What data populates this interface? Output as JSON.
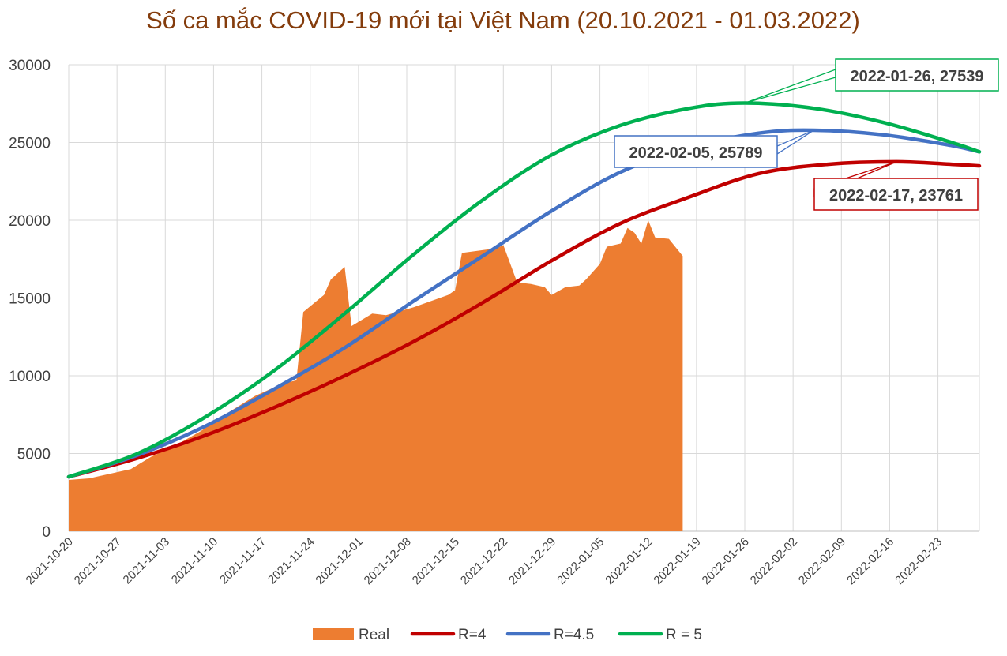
{
  "chart_data": {
    "type": "line",
    "title": "Số ca mắc COVID-19 mới tại Việt Nam (20.10.2021 - 01.03.2022)",
    "xlabel": "",
    "ylabel": "",
    "xlim": [
      "2021-10-20",
      "2022-03-01"
    ],
    "ylim": [
      0,
      30000
    ],
    "yticks": [
      0,
      5000,
      10000,
      15000,
      20000,
      25000,
      30000
    ],
    "xticks": [
      "2021-10-20",
      "2021-10-27",
      "2021-11-03",
      "2021-11-10",
      "2021-11-17",
      "2021-11-24",
      "2021-12-01",
      "2021-12-08",
      "2021-12-15",
      "2021-12-22",
      "2021-12-29",
      "2022-01-05",
      "2022-01-12",
      "2022-01-19",
      "2022-01-26",
      "2022-02-02",
      "2022-02-09",
      "2022-02-16",
      "2022-02-23"
    ],
    "grid": true,
    "legend_position": "bottom",
    "colors": {
      "real": "#ed7d31",
      "r4": "#c00000",
      "r45": "#4472c4",
      "r5": "#00b050",
      "title": "#843c0c"
    },
    "series": [
      {
        "name": "Real",
        "kind": "area",
        "color": "#ed7d31",
        "x": [
          "2021-10-20",
          "2021-10-23",
          "2021-10-26",
          "2021-10-29",
          "2021-11-01",
          "2021-11-04",
          "2021-11-08",
          "2021-11-12",
          "2021-11-16",
          "2021-11-20",
          "2021-11-22",
          "2021-11-23",
          "2021-11-26",
          "2021-11-27",
          "2021-11-29",
          "2021-11-30",
          "2021-12-03",
          "2021-12-05",
          "2021-12-09",
          "2021-12-14",
          "2021-12-15",
          "2021-12-16",
          "2021-12-21",
          "2021-12-22",
          "2021-12-24",
          "2021-12-26",
          "2021-12-28",
          "2021-12-29",
          "2021-12-31",
          "2022-01-02",
          "2022-01-03",
          "2022-01-05",
          "2022-01-06",
          "2022-01-08",
          "2022-01-09",
          "2022-01-10",
          "2022-01-11",
          "2022-01-12",
          "2022-01-13",
          "2022-01-15",
          "2022-01-17"
        ],
        "y": [
          3300,
          3400,
          3700,
          4000,
          4800,
          5400,
          6400,
          7600,
          8700,
          9500,
          9700,
          14100,
          15200,
          16200,
          17000,
          13200,
          14000,
          13900,
          14400,
          15200,
          15500,
          17900,
          18200,
          18400,
          16000,
          15900,
          15700,
          15200,
          15700,
          15800,
          16200,
          17200,
          18300,
          18500,
          19500,
          19200,
          18500,
          20000,
          18900,
          18800,
          17700
        ]
      },
      {
        "name": "R=4",
        "kind": "line",
        "color": "#c00000",
        "x": [
          "2021-10-20",
          "2021-10-30",
          "2021-11-09",
          "2021-11-19",
          "2021-11-29",
          "2021-12-09",
          "2021-12-19",
          "2021-12-29",
          "2022-01-08",
          "2022-01-18",
          "2022-01-28",
          "2022-02-07",
          "2022-02-17",
          "2022-02-25",
          "2022-03-01"
        ],
        "y": [
          3500,
          4700,
          6200,
          8000,
          10000,
          12200,
          14700,
          17400,
          19800,
          21500,
          23000,
          23600,
          23761,
          23600,
          23500
        ]
      },
      {
        "name": "R=4.5",
        "kind": "line",
        "color": "#4472c4",
        "x": [
          "2021-10-20",
          "2021-10-30",
          "2021-11-09",
          "2021-11-19",
          "2021-11-29",
          "2021-12-09",
          "2021-12-19",
          "2021-12-29",
          "2022-01-08",
          "2022-01-18",
          "2022-01-28",
          "2022-02-05",
          "2022-02-15",
          "2022-02-25",
          "2022-03-01"
        ],
        "y": [
          3500,
          4900,
          6800,
          9200,
          11800,
          14800,
          17700,
          20600,
          23100,
          24700,
          25600,
          25789,
          25500,
          24800,
          24400
        ]
      },
      {
        "name": "R = 5",
        "kind": "line",
        "color": "#00b050",
        "x": [
          "2021-10-20",
          "2021-10-30",
          "2021-11-09",
          "2021-11-19",
          "2021-11-29",
          "2021-12-09",
          "2021-12-19",
          "2021-12-29",
          "2022-01-08",
          "2022-01-18",
          "2022-01-26",
          "2022-02-05",
          "2022-02-15",
          "2022-02-25",
          "2022-03-01"
        ],
        "y": [
          3500,
          5000,
          7400,
          10400,
          14000,
          17800,
          21300,
          24200,
          26100,
          27200,
          27539,
          27200,
          26300,
          25000,
          24400
        ]
      }
    ],
    "annotations": [
      {
        "text": "2022-01-26, 27539",
        "x": "2022-01-26",
        "y": 27539,
        "color": "#00b050"
      },
      {
        "text": "2022-02-05, 25789",
        "x": "2022-02-05",
        "y": 25789,
        "color": "#4472c4"
      },
      {
        "text": "2022-02-17, 23761",
        "x": "2022-02-17",
        "y": 23761,
        "color": "#c00000"
      }
    ]
  }
}
